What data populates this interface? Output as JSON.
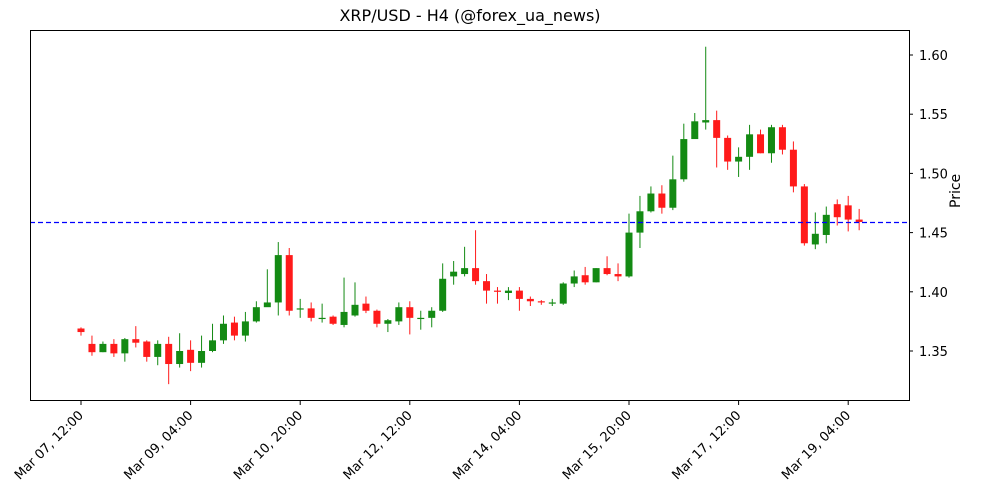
{
  "chart_data": {
    "type": "candlestick",
    "title": "XRP/USD - H4 (@forex_ua_news)",
    "xlabel": "",
    "ylabel": "Price",
    "ylim": [
      1.308,
      1.622
    ],
    "y_ticks": [
      "1.35",
      "1.40",
      "1.45",
      "1.50",
      "1.55",
      "1.60"
    ],
    "x_ticks": [
      {
        "label": "Mar 07, 12:00",
        "index": 0
      },
      {
        "label": "Mar 09, 04:00",
        "index": 10
      },
      {
        "label": "Mar 10, 20:00",
        "index": 20
      },
      {
        "label": "Mar 12, 12:00",
        "index": 30
      },
      {
        "label": "Mar 14, 04:00",
        "index": 40
      },
      {
        "label": "Mar 15, 20:00",
        "index": 50
      },
      {
        "label": "Mar 17, 12:00",
        "index": 60
      },
      {
        "label": "Mar 19, 04:00",
        "index": 70
      }
    ],
    "interval": "4h",
    "reference_line": {
      "value": 1.4585,
      "style": "dashed",
      "color": "#0000ff"
    },
    "colors": {
      "up": "#138a13",
      "down": "#ff1a1a"
    },
    "grid": false,
    "candles_ohlc": [
      [
        1.369,
        1.366,
        1.37,
        1.363
      ],
      [
        1.356,
        1.349,
        1.363,
        1.346
      ],
      [
        1.349,
        1.356,
        1.358,
        1.349
      ],
      [
        1.356,
        1.348,
        1.36,
        1.345
      ],
      [
        1.348,
        1.36,
        1.361,
        1.341
      ],
      [
        1.36,
        1.357,
        1.371,
        1.353
      ],
      [
        1.358,
        1.345,
        1.359,
        1.341
      ],
      [
        1.345,
        1.356,
        1.359,
        1.338
      ],
      [
        1.356,
        1.339,
        1.362,
        1.322
      ],
      [
        1.339,
        1.35,
        1.365,
        1.336
      ],
      [
        1.351,
        1.34,
        1.359,
        1.333
      ],
      [
        1.34,
        1.35,
        1.363,
        1.336
      ],
      [
        1.35,
        1.359,
        1.373,
        1.349
      ],
      [
        1.359,
        1.373,
        1.38,
        1.356
      ],
      [
        1.374,
        1.363,
        1.379,
        1.359
      ],
      [
        1.363,
        1.375,
        1.383,
        1.358
      ],
      [
        1.375,
        1.387,
        1.392,
        1.374
      ],
      [
        1.387,
        1.391,
        1.419,
        1.388
      ],
      [
        1.391,
        1.431,
        1.442,
        1.38
      ],
      [
        1.431,
        1.384,
        1.437,
        1.38
      ],
      [
        1.385,
        1.386,
        1.394,
        1.378
      ],
      [
        1.386,
        1.378,
        1.391,
        1.375
      ],
      [
        1.378,
        1.378,
        1.39,
        1.374
      ],
      [
        1.379,
        1.373,
        1.38,
        1.372
      ],
      [
        1.372,
        1.383,
        1.412,
        1.37
      ],
      [
        1.38,
        1.389,
        1.408,
        1.379
      ],
      [
        1.39,
        1.384,
        1.396,
        1.382
      ],
      [
        1.384,
        1.373,
        1.385,
        1.37
      ],
      [
        1.373,
        1.376,
        1.377,
        1.366
      ],
      [
        1.375,
        1.387,
        1.391,
        1.372
      ],
      [
        1.387,
        1.378,
        1.392,
        1.364
      ],
      [
        1.378,
        1.378,
        1.384,
        1.368
      ],
      [
        1.378,
        1.384,
        1.387,
        1.37
      ],
      [
        1.384,
        1.411,
        1.424,
        1.383
      ],
      [
        1.413,
        1.417,
        1.426,
        1.406
      ],
      [
        1.415,
        1.42,
        1.438,
        1.413
      ],
      [
        1.42,
        1.409,
        1.452,
        1.406
      ],
      [
        1.409,
        1.401,
        1.415,
        1.39
      ],
      [
        1.401,
        1.4,
        1.404,
        1.39
      ],
      [
        1.399,
        1.401,
        1.404,
        1.393
      ],
      [
        1.401,
        1.394,
        1.404,
        1.384
      ],
      [
        1.394,
        1.392,
        1.396,
        1.388
      ],
      [
        1.392,
        1.391,
        1.393,
        1.389
      ],
      [
        1.391,
        1.391,
        1.394,
        1.388
      ],
      [
        1.39,
        1.407,
        1.408,
        1.389
      ],
      [
        1.407,
        1.413,
        1.418,
        1.404
      ],
      [
        1.414,
        1.408,
        1.421,
        1.406
      ],
      [
        1.408,
        1.42,
        1.42,
        1.408
      ],
      [
        1.42,
        1.415,
        1.43,
        1.414
      ],
      [
        1.415,
        1.413,
        1.424,
        1.409
      ],
      [
        1.413,
        1.45,
        1.466,
        1.412
      ],
      [
        1.45,
        1.468,
        1.481,
        1.437
      ],
      [
        1.468,
        1.483,
        1.489,
        1.467
      ],
      [
        1.483,
        1.471,
        1.49,
        1.466
      ],
      [
        1.471,
        1.495,
        1.515,
        1.469
      ],
      [
        1.495,
        1.529,
        1.542,
        1.493
      ],
      [
        1.529,
        1.544,
        1.551,
        1.537
      ],
      [
        1.543,
        1.545,
        1.607,
        1.537
      ],
      [
        1.545,
        1.53,
        1.553,
        1.505
      ],
      [
        1.53,
        1.51,
        1.532,
        1.503
      ],
      [
        1.51,
        1.514,
        1.522,
        1.497
      ],
      [
        1.514,
        1.533,
        1.541,
        1.503
      ],
      [
        1.533,
        1.517,
        1.537,
        1.517
      ],
      [
        1.517,
        1.539,
        1.541,
        1.509
      ],
      [
        1.539,
        1.52,
        1.541,
        1.516
      ],
      [
        1.52,
        1.489,
        1.527,
        1.484
      ],
      [
        1.489,
        1.441,
        1.491,
        1.439
      ],
      [
        1.44,
        1.449,
        1.467,
        1.436
      ],
      [
        1.448,
        1.465,
        1.472,
        1.441
      ],
      [
        1.474,
        1.463,
        1.478,
        1.456
      ],
      [
        1.473,
        1.461,
        1.481,
        1.451
      ],
      [
        1.461,
        1.459,
        1.47,
        1.452
      ]
    ]
  }
}
